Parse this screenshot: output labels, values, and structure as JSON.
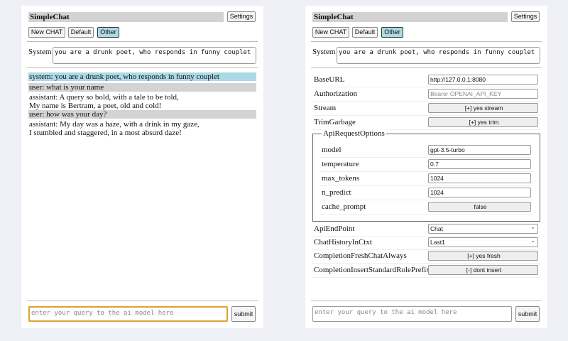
{
  "app": {
    "title": "SimpleChat",
    "settings_label": "Settings",
    "modes": [
      "New CHAT",
      "Default",
      "Other"
    ],
    "selected_mode": "Other",
    "system_label": "System",
    "system_prompt": "you are a drunk poet, who responds in funny couplet",
    "query_placeholder": "enter your query to the ai model here",
    "submit_label": "submit"
  },
  "chat": [
    {
      "role": "system",
      "lines": [
        "system: you are a drunk poet, who responds in funny couplet"
      ]
    },
    {
      "role": "user",
      "lines": [
        "user: what is your name"
      ]
    },
    {
      "role": "assistant",
      "lines": [
        "assistant: A query so bold, with a tale to be told,",
        "My name is Bertram, a poet, old and cold!"
      ]
    },
    {
      "role": "user",
      "lines": [
        "user: how was your day?"
      ]
    },
    {
      "role": "assistant",
      "lines": [
        "assistant: My day was a haze, with a drink in my gaze,",
        "I stumbled and staggered, in a most absurd daze!"
      ]
    }
  ],
  "settings": {
    "base_url": {
      "label": "BaseURL",
      "value": "http://127.0.0.1:8080"
    },
    "authorization": {
      "label": "Authorization",
      "placeholder": "Bearer OPENAI_API_KEY"
    },
    "stream": {
      "label": "Stream",
      "value": "[+] yes stream"
    },
    "trim": {
      "label": "TrimGarbage",
      "value": "[+] yes trim"
    },
    "api_options": {
      "legend": "ApiRequestOptions",
      "model": {
        "label": "model",
        "value": "gpt-3.5-turbo"
      },
      "temperature": {
        "label": "temperature",
        "value": "0.7"
      },
      "max_tokens": {
        "label": "max_tokens",
        "value": "1024"
      },
      "n_predict": {
        "label": "n_predict",
        "value": "1024"
      },
      "cache_prompt": {
        "label": "cache_prompt",
        "value": "false"
      }
    },
    "endpoint": {
      "label": "ApiEndPoint",
      "value": "Chat"
    },
    "history": {
      "label": "ChatHistoryInCtxt",
      "value": "Last1"
    },
    "fresh": {
      "label": "CompletionFreshChatAlways",
      "value": "[+] yes fresh"
    },
    "prefix": {
      "label": "CompletionInsertStandardRolePrefix",
      "value": "[-] dont insert"
    }
  }
}
